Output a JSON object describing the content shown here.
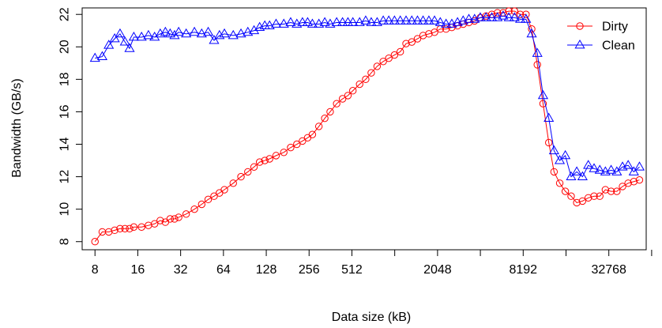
{
  "chart_data": {
    "type": "line",
    "title": "",
    "xlabel": "Data size (kB)",
    "ylabel": "Bandwidth (GB/s)",
    "x_scale": "log2",
    "x_ticks": [
      8,
      16,
      32,
      64,
      128,
      256,
      512,
      1024,
      2048,
      4096,
      8192,
      16384,
      32768,
      65536
    ],
    "x_tick_labels": [
      "8",
      "16",
      "32",
      "64",
      "128",
      "256",
      "512",
      "",
      "2048",
      "",
      "8192",
      "",
      "32768",
      ""
    ],
    "y_ticks": [
      8,
      10,
      12,
      14,
      16,
      18,
      20,
      22
    ],
    "y_tick_labels": [
      "8",
      "10",
      "12",
      "14",
      "16",
      "18",
      "20",
      "22"
    ],
    "xlim": [
      6.5,
      60000
    ],
    "ylim": [
      7.5,
      22.4
    ],
    "grid": false,
    "legend_position": "top-right",
    "series": [
      {
        "name": "Dirty",
        "color": "#ff0000",
        "marker": "circle",
        "points": [
          [
            8,
            8.0
          ],
          [
            9,
            8.6
          ],
          [
            10,
            8.6
          ],
          [
            11,
            8.7
          ],
          [
            12,
            8.8
          ],
          [
            13,
            8.8
          ],
          [
            14,
            8.8
          ],
          [
            15,
            8.9
          ],
          [
            17,
            8.9
          ],
          [
            19,
            9.0
          ],
          [
            21,
            9.1
          ],
          [
            23,
            9.3
          ],
          [
            25,
            9.2
          ],
          [
            27,
            9.4
          ],
          [
            29,
            9.4
          ],
          [
            31,
            9.5
          ],
          [
            35,
            9.7
          ],
          [
            40,
            10.0
          ],
          [
            45,
            10.3
          ],
          [
            50,
            10.6
          ],
          [
            55,
            10.8
          ],
          [
            60,
            11.0
          ],
          [
            65,
            11.2
          ],
          [
            75,
            11.6
          ],
          [
            85,
            12.0
          ],
          [
            95,
            12.3
          ],
          [
            105,
            12.6
          ],
          [
            115,
            12.9
          ],
          [
            125,
            13.0
          ],
          [
            135,
            13.1
          ],
          [
            150,
            13.3
          ],
          [
            170,
            13.5
          ],
          [
            190,
            13.8
          ],
          [
            210,
            14.0
          ],
          [
            230,
            14.2
          ],
          [
            250,
            14.4
          ],
          [
            270,
            14.6
          ],
          [
            300,
            15.1
          ],
          [
            330,
            15.6
          ],
          [
            360,
            16.0
          ],
          [
            400,
            16.5
          ],
          [
            440,
            16.8
          ],
          [
            480,
            17.0
          ],
          [
            520,
            17.3
          ],
          [
            580,
            17.7
          ],
          [
            640,
            18.0
          ],
          [
            700,
            18.4
          ],
          [
            770,
            18.8
          ],
          [
            850,
            19.1
          ],
          [
            930,
            19.3
          ],
          [
            1020,
            19.5
          ],
          [
            1120,
            19.7
          ],
          [
            1230,
            20.2
          ],
          [
            1350,
            20.3
          ],
          [
            1480,
            20.5
          ],
          [
            1620,
            20.7
          ],
          [
            1780,
            20.8
          ],
          [
            1950,
            20.9
          ],
          [
            2140,
            21.1
          ],
          [
            2350,
            21.1
          ],
          [
            2580,
            21.2
          ],
          [
            2830,
            21.3
          ],
          [
            3100,
            21.4
          ],
          [
            3400,
            21.5
          ],
          [
            3730,
            21.6
          ],
          [
            4090,
            21.8
          ],
          [
            4490,
            21.9
          ],
          [
            4930,
            22.0
          ],
          [
            5400,
            22.1
          ],
          [
            5920,
            22.1
          ],
          [
            6490,
            22.2
          ],
          [
            7120,
            22.2
          ],
          [
            7810,
            22.0
          ],
          [
            8570,
            22.0
          ],
          [
            9400,
            21.1
          ],
          [
            10300,
            18.9
          ],
          [
            11300,
            16.5
          ],
          [
            12400,
            14.1
          ],
          [
            13500,
            12.3
          ],
          [
            14800,
            11.6
          ],
          [
            16200,
            11.1
          ],
          [
            17800,
            10.8
          ],
          [
            19500,
            10.4
          ],
          [
            21400,
            10.5
          ],
          [
            23500,
            10.7
          ],
          [
            25800,
            10.8
          ],
          [
            28300,
            10.8
          ],
          [
            31000,
            11.2
          ],
          [
            34000,
            11.1
          ],
          [
            37300,
            11.1
          ],
          [
            40900,
            11.4
          ],
          [
            44800,
            11.6
          ],
          [
            49100,
            11.7
          ],
          [
            53800,
            11.8
          ]
        ]
      },
      {
        "name": "Clean",
        "color": "#0000ff",
        "marker": "triangle",
        "points": [
          [
            8,
            19.3
          ],
          [
            9,
            19.4
          ],
          [
            10,
            20.1
          ],
          [
            11,
            20.5
          ],
          [
            12,
            20.8
          ],
          [
            13,
            20.3
          ],
          [
            14,
            19.9
          ],
          [
            15,
            20.6
          ],
          [
            17,
            20.6
          ],
          [
            19,
            20.7
          ],
          [
            21,
            20.6
          ],
          [
            23,
            20.8
          ],
          [
            25,
            20.9
          ],
          [
            27,
            20.8
          ],
          [
            29,
            20.7
          ],
          [
            31,
            20.9
          ],
          [
            35,
            20.8
          ],
          [
            40,
            20.9
          ],
          [
            45,
            20.8
          ],
          [
            50,
            20.9
          ],
          [
            55,
            20.4
          ],
          [
            60,
            20.7
          ],
          [
            65,
            20.8
          ],
          [
            75,
            20.7
          ],
          [
            85,
            20.8
          ],
          [
            95,
            20.9
          ],
          [
            105,
            21.0
          ],
          [
            115,
            21.2
          ],
          [
            125,
            21.3
          ],
          [
            135,
            21.3
          ],
          [
            150,
            21.4
          ],
          [
            170,
            21.4
          ],
          [
            190,
            21.5
          ],
          [
            210,
            21.4
          ],
          [
            230,
            21.5
          ],
          [
            250,
            21.5
          ],
          [
            270,
            21.4
          ],
          [
            300,
            21.4
          ],
          [
            330,
            21.5
          ],
          [
            360,
            21.4
          ],
          [
            400,
            21.5
          ],
          [
            440,
            21.5
          ],
          [
            480,
            21.5
          ],
          [
            520,
            21.5
          ],
          [
            580,
            21.5
          ],
          [
            640,
            21.6
          ],
          [
            700,
            21.5
          ],
          [
            770,
            21.5
          ],
          [
            850,
            21.6
          ],
          [
            930,
            21.6
          ],
          [
            1020,
            21.6
          ],
          [
            1120,
            21.6
          ],
          [
            1230,
            21.6
          ],
          [
            1350,
            21.6
          ],
          [
            1480,
            21.6
          ],
          [
            1620,
            21.6
          ],
          [
            1780,
            21.6
          ],
          [
            1950,
            21.6
          ],
          [
            2140,
            21.5
          ],
          [
            2350,
            21.4
          ],
          [
            2580,
            21.4
          ],
          [
            2830,
            21.5
          ],
          [
            3100,
            21.6
          ],
          [
            3400,
            21.7
          ],
          [
            3730,
            21.7
          ],
          [
            4090,
            21.8
          ],
          [
            4490,
            21.8
          ],
          [
            4930,
            21.8
          ],
          [
            5400,
            21.8
          ],
          [
            5920,
            21.9
          ],
          [
            6490,
            21.8
          ],
          [
            7120,
            21.8
          ],
          [
            7810,
            21.7
          ],
          [
            8570,
            21.7
          ],
          [
            9400,
            20.8
          ],
          [
            10300,
            19.6
          ],
          [
            11300,
            17.0
          ],
          [
            12400,
            15.6
          ],
          [
            13500,
            13.6
          ],
          [
            14800,
            13.0
          ],
          [
            16200,
            13.3
          ],
          [
            17800,
            12.0
          ],
          [
            19500,
            12.3
          ],
          [
            21400,
            12.0
          ],
          [
            23500,
            12.7
          ],
          [
            25800,
            12.5
          ],
          [
            28300,
            12.4
          ],
          [
            31000,
            12.3
          ],
          [
            34000,
            12.4
          ],
          [
            37300,
            12.3
          ],
          [
            40900,
            12.6
          ],
          [
            44800,
            12.7
          ],
          [
            49100,
            12.3
          ],
          [
            53800,
            12.6
          ]
        ]
      }
    ]
  }
}
